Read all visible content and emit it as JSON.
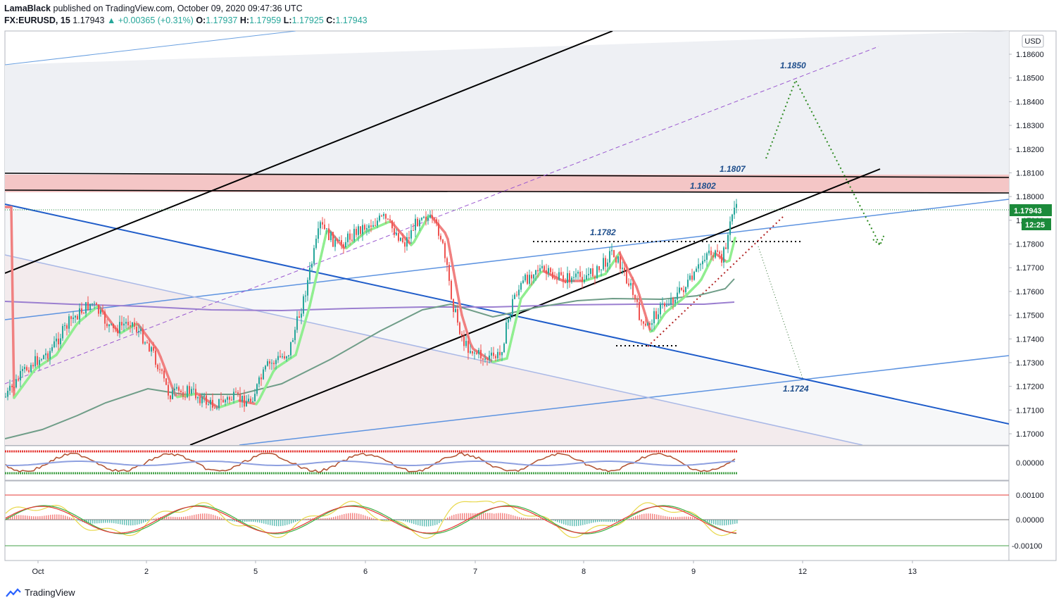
{
  "header": {
    "publisher": "LamaBlack",
    "published": "published on TradingView.com, October 09, 2020 09:47:36 UTC",
    "symbol": "FX:EURUSD, 15",
    "last": "1.17943",
    "change": "+0.00365 (+0.31%)",
    "o_label": "O:",
    "o": "1.17937",
    "h_label": "H:",
    "h": "1.17959",
    "l_label": "L:",
    "l": "1.17925",
    "c_label": "C:",
    "c": "1.17943"
  },
  "footer": {
    "brand": "TradingView"
  },
  "colors": {
    "up": "#26a69a",
    "down": "#ef5350",
    "price_tag": "#1b8a3a",
    "resistance_zone": "#f4c6c6",
    "trendline_blue": "#1f5cc9",
    "ema_green": "#90ee90",
    "ema_red": "#f08080"
  },
  "chart_data": {
    "type": "candlestick",
    "currency": "USD",
    "last_price": "1.17943",
    "countdown": "12:25",
    "y_ticks": [
      "1.18600",
      "1.18500",
      "1.18400",
      "1.18300",
      "1.18200",
      "1.18100",
      "1.18000",
      "1.17900",
      "1.17800",
      "1.17700",
      "1.17600",
      "1.17500",
      "1.17400",
      "1.17300",
      "1.17200",
      "1.17100",
      "1.17000"
    ],
    "x_ticks": [
      "Oct",
      "2",
      "5",
      "6",
      "7",
      "8",
      "9",
      "12",
      "13"
    ],
    "resistance_zone": [
      1.18015,
      1.18085
    ],
    "annotations": [
      "1.1850",
      "1.1807",
      "1.1802",
      "1.1782",
      "1.1724"
    ],
    "osc1_ticks": [
      "0.00000"
    ],
    "osc2_ticks": [
      "0.00100",
      "0.00000",
      "-0.00100"
    ]
  }
}
